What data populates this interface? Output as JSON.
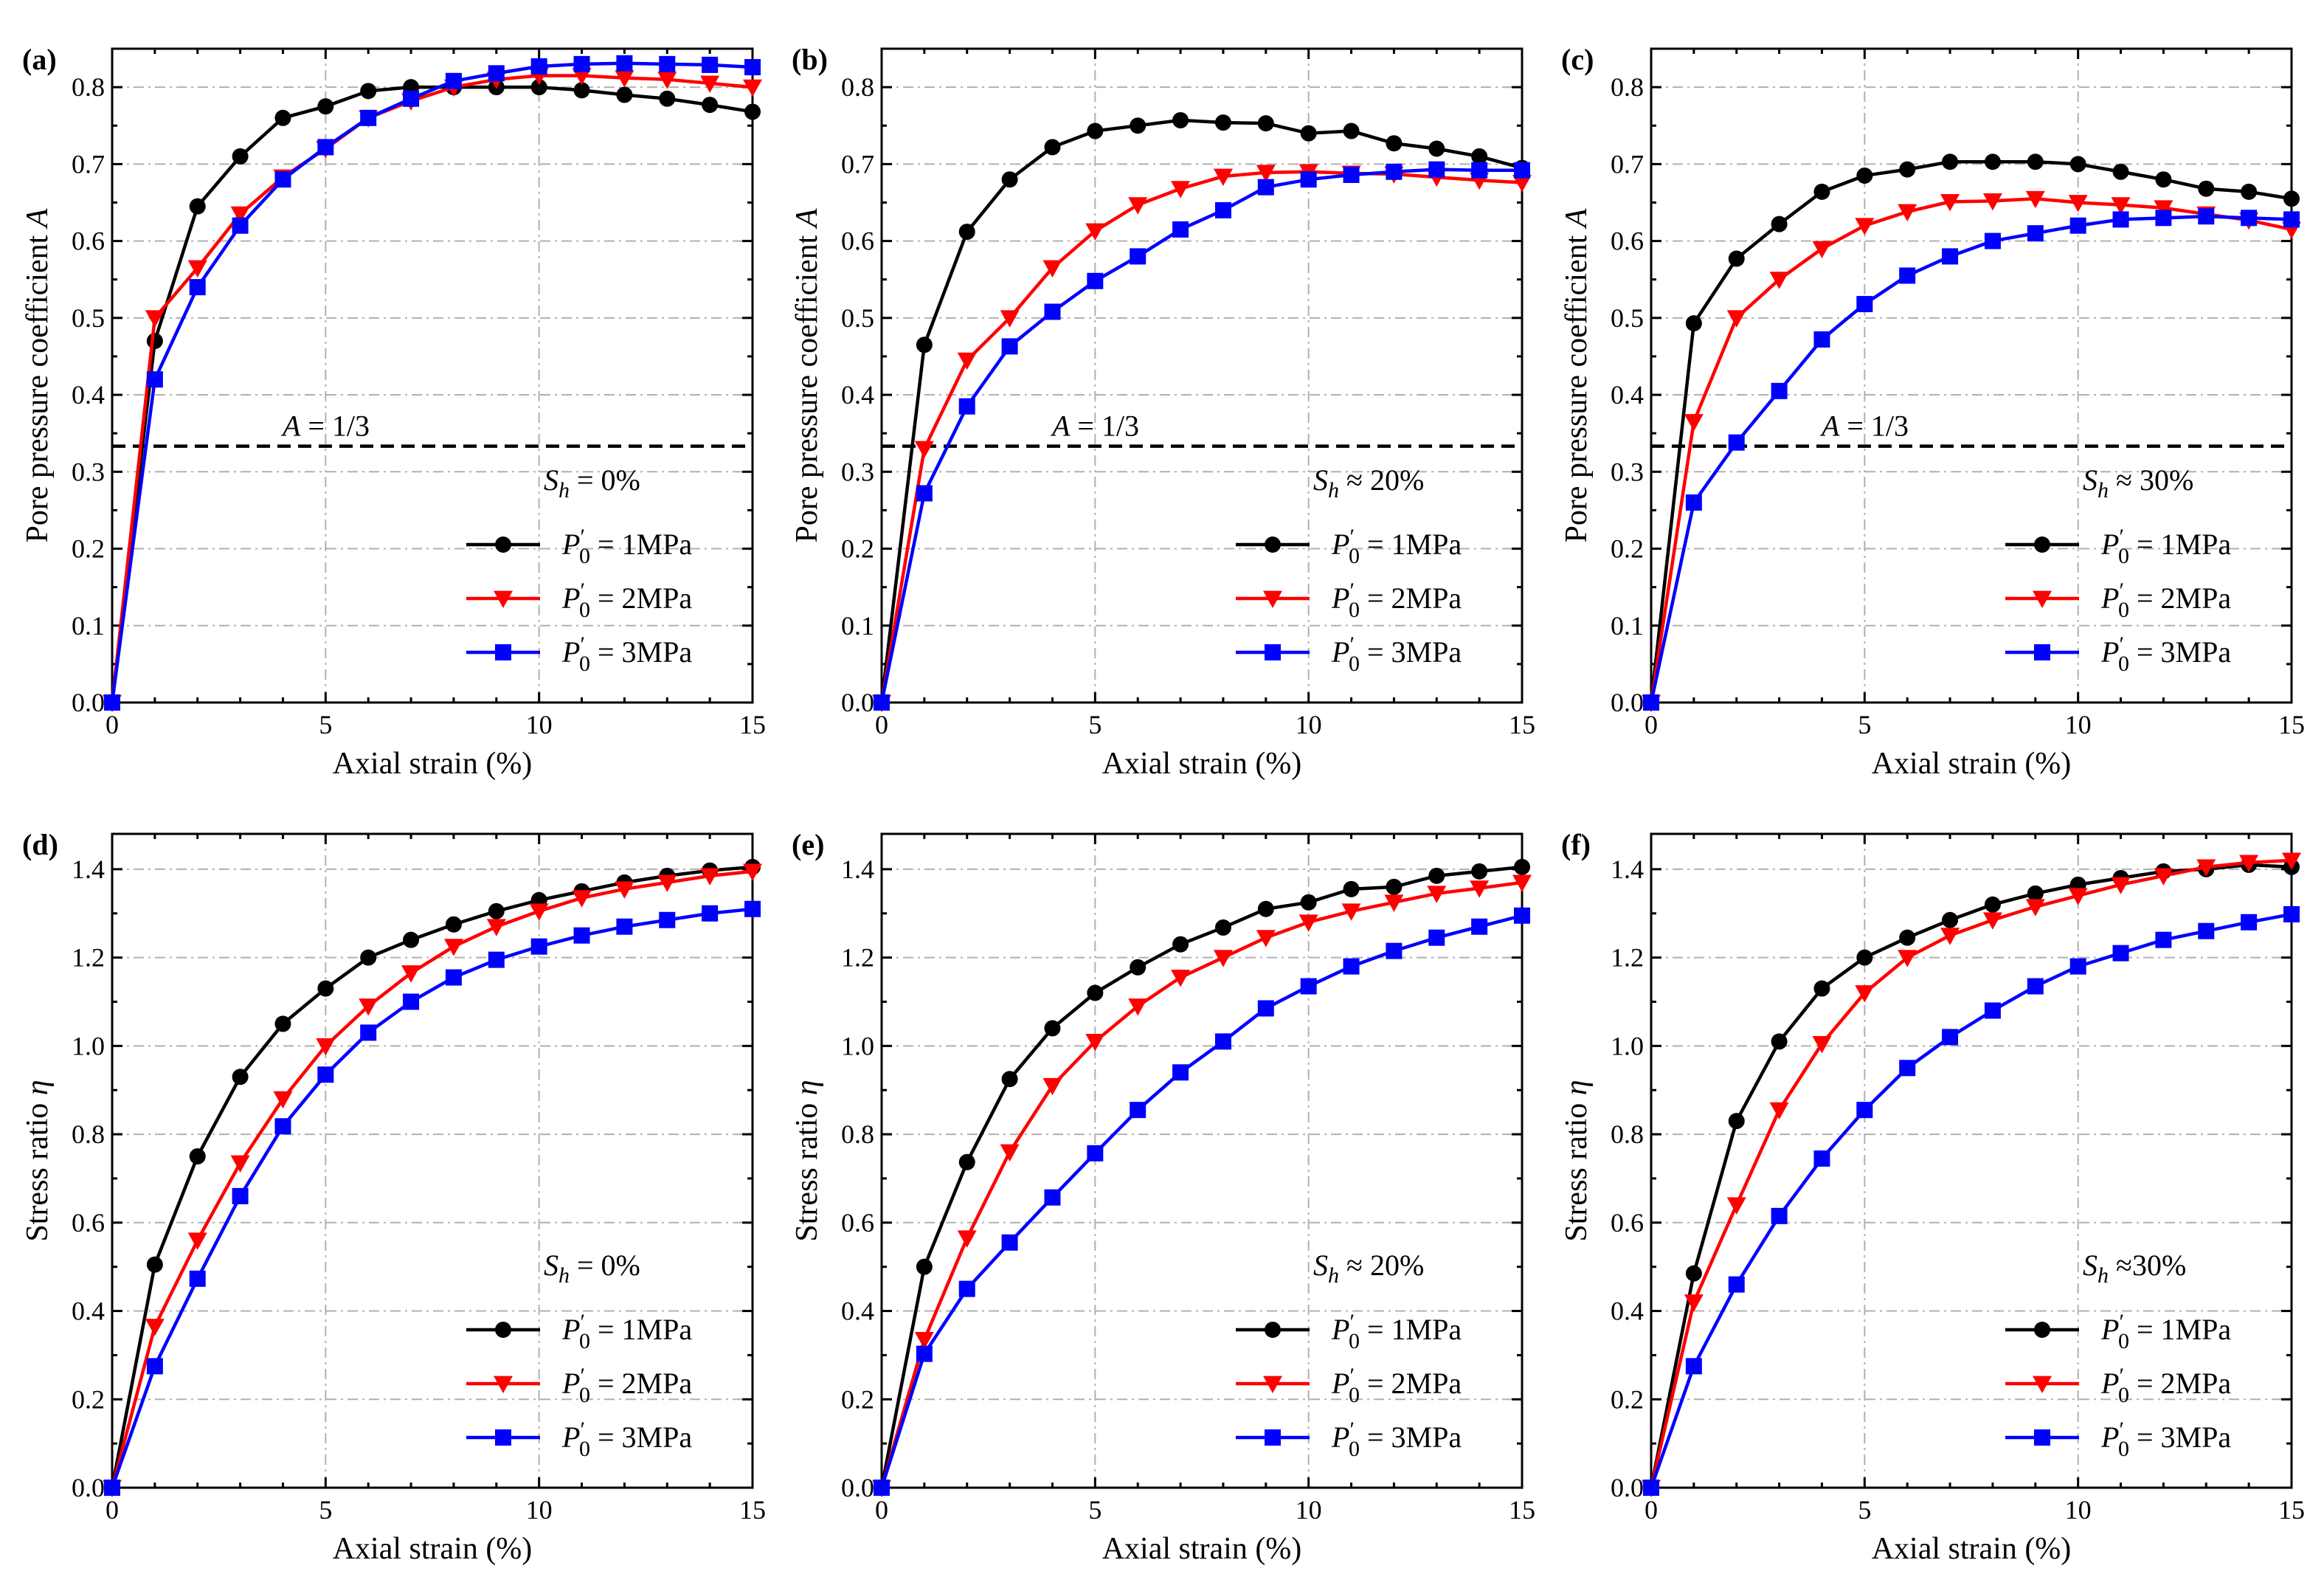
{
  "figure": {
    "series_names": [
      "P'0 = 1MPa",
      "P'0 = 2MPa",
      "P'0 = 3MPa"
    ],
    "legend_prefix": "P",
    "legend_superscript": "′",
    "legend_subscript": "0",
    "legend_values": [
      "= 1MPa",
      "= 2MPa",
      "= 3MPa"
    ],
    "series_colors": [
      "#000000",
      "#ff0000",
      "#0000ff"
    ],
    "series_markers": [
      "circle",
      "triangle-down",
      "square"
    ]
  },
  "chart_data": [
    {
      "panel": "(a)",
      "type": "line",
      "title": "",
      "xlabel": "Axial strain (%)",
      "ylabel_prefix": "Pore pressure coefficient ",
      "ylabel_symbol": "A",
      "xlim": [
        0,
        15
      ],
      "ylim": [
        0.0,
        0.85
      ],
      "xticks": [
        0,
        5,
        10,
        15
      ],
      "yticks": [
        0.0,
        0.1,
        0.2,
        0.3,
        0.4,
        0.5,
        0.6,
        0.7,
        0.8
      ],
      "ytick_labels": [
        "0.0",
        "0.1",
        "0.2",
        "0.3",
        "0.4",
        "0.5",
        "0.6",
        "0.7",
        "0.8"
      ],
      "grid": true,
      "condition_symbol": "S",
      "condition_sub": "h",
      "condition_rel": "= 0%",
      "refline": {
        "y": 0.3333,
        "symbol": "A",
        "text": "= 1/3"
      },
      "x": [
        0,
        1,
        2,
        3,
        4,
        5,
        6,
        7,
        8,
        9,
        10,
        11,
        12,
        13,
        14,
        15
      ],
      "series": [
        {
          "name": "P'0 = 1MPa",
          "values": [
            0,
            0.47,
            0.645,
            0.71,
            0.76,
            0.775,
            0.795,
            0.8,
            0.8,
            0.8,
            0.8,
            0.796,
            0.79,
            0.785,
            0.777,
            0.768
          ]
        },
        {
          "name": "P'0 = 2MPa",
          "values": [
            0,
            0.5,
            0.565,
            0.635,
            0.683,
            0.72,
            0.76,
            0.782,
            0.8,
            0.81,
            0.815,
            0.815,
            0.812,
            0.81,
            0.805,
            0.8
          ]
        },
        {
          "name": "P'0 = 3MPa",
          "values": [
            0,
            0.42,
            0.54,
            0.62,
            0.68,
            0.722,
            0.76,
            0.785,
            0.808,
            0.818,
            0.827,
            0.83,
            0.831,
            0.83,
            0.829,
            0.826
          ]
        }
      ]
    },
    {
      "panel": "(b)",
      "type": "line",
      "title": "",
      "xlabel": "Axial strain (%)",
      "ylabel_prefix": "Pore pressure coefficient ",
      "ylabel_symbol": "A",
      "xlim": [
        0,
        15
      ],
      "ylim": [
        0.0,
        0.85
      ],
      "xticks": [
        0,
        5,
        10,
        15
      ],
      "yticks": [
        0.0,
        0.1,
        0.2,
        0.3,
        0.4,
        0.5,
        0.6,
        0.7,
        0.8
      ],
      "ytick_labels": [
        "0.0",
        "0.1",
        "0.2",
        "0.3",
        "0.4",
        "0.5",
        "0.6",
        "0.7",
        "0.8"
      ],
      "grid": true,
      "condition_symbol": "S",
      "condition_sub": "h",
      "condition_rel": "≈ 20%",
      "refline": {
        "y": 0.3333,
        "symbol": "A",
        "text": "= 1/3"
      },
      "x": [
        0,
        1,
        2,
        3,
        4,
        5,
        6,
        7,
        8,
        9,
        10,
        11,
        12,
        13,
        14,
        15
      ],
      "series": [
        {
          "name": "P'0 = 1MPa",
          "values": [
            0,
            0.465,
            0.612,
            0.68,
            0.722,
            0.743,
            0.75,
            0.757,
            0.754,
            0.753,
            0.74,
            0.743,
            0.727,
            0.72,
            0.71,
            0.695
          ]
        },
        {
          "name": "P'0 = 2MPa",
          "values": [
            0,
            0.33,
            0.445,
            0.5,
            0.565,
            0.613,
            0.647,
            0.668,
            0.684,
            0.689,
            0.69,
            0.688,
            0.687,
            0.683,
            0.679,
            0.676
          ]
        },
        {
          "name": "P'0 = 3MPa",
          "values": [
            0,
            0.272,
            0.385,
            0.463,
            0.508,
            0.548,
            0.58,
            0.615,
            0.64,
            0.67,
            0.68,
            0.686,
            0.69,
            0.693,
            0.692,
            0.692
          ]
        }
      ]
    },
    {
      "panel": "(c)",
      "type": "line",
      "title": "",
      "xlabel": "Axial strain (%)",
      "ylabel_prefix": "Pore pressure coefficient ",
      "ylabel_symbol": "A",
      "xlim": [
        0,
        15
      ],
      "ylim": [
        0.0,
        0.85
      ],
      "xticks": [
        0,
        5,
        10,
        15
      ],
      "yticks": [
        0.0,
        0.1,
        0.2,
        0.3,
        0.4,
        0.5,
        0.6,
        0.7,
        0.8
      ],
      "ytick_labels": [
        "0.0",
        "0.1",
        "0.2",
        "0.3",
        "0.4",
        "0.5",
        "0.6",
        "0.7",
        "0.8"
      ],
      "grid": true,
      "condition_symbol": "S",
      "condition_sub": "h",
      "condition_rel": "≈ 30%",
      "refline": {
        "y": 0.3333,
        "symbol": "A",
        "text": "= 1/3"
      },
      "x": [
        0,
        1,
        2,
        3,
        4,
        5,
        6,
        7,
        8,
        9,
        10,
        11,
        12,
        13,
        14,
        15
      ],
      "series": [
        {
          "name": "P'0 = 1MPa",
          "values": [
            0,
            0.493,
            0.577,
            0.622,
            0.664,
            0.685,
            0.693,
            0.703,
            0.703,
            0.703,
            0.7,
            0.69,
            0.68,
            0.668,
            0.664,
            0.655
          ]
        },
        {
          "name": "P'0 = 2MPa",
          "values": [
            0,
            0.365,
            0.5,
            0.55,
            0.59,
            0.62,
            0.638,
            0.651,
            0.652,
            0.655,
            0.65,
            0.647,
            0.643,
            0.635,
            0.627,
            0.615
          ]
        },
        {
          "name": "P'0 = 3MPa",
          "values": [
            0,
            0.26,
            0.338,
            0.405,
            0.472,
            0.518,
            0.555,
            0.58,
            0.6,
            0.61,
            0.62,
            0.628,
            0.63,
            0.632,
            0.63,
            0.628
          ]
        }
      ]
    },
    {
      "panel": "(d)",
      "type": "line",
      "title": "",
      "xlabel": "Axial strain (%)",
      "ylabel_prefix": "Stress ratio ",
      "ylabel_symbol": "η",
      "xlim": [
        0,
        15
      ],
      "ylim": [
        0.0,
        1.48
      ],
      "xticks": [
        0,
        5,
        10,
        15
      ],
      "yticks": [
        0.0,
        0.2,
        0.4,
        0.6,
        0.8,
        1.0,
        1.2,
        1.4
      ],
      "ytick_labels": [
        "0.0",
        "0.2",
        "0.4",
        "0.6",
        "0.8",
        "1.0",
        "1.2",
        "1.4"
      ],
      "grid": true,
      "condition_symbol": "S",
      "condition_sub": "h",
      "condition_rel": "= 0%",
      "refline": null,
      "x": [
        0,
        1,
        2,
        3,
        4,
        5,
        6,
        7,
        8,
        9,
        10,
        11,
        12,
        13,
        14,
        15
      ],
      "series": [
        {
          "name": "P'0 = 1MPa",
          "values": [
            0,
            0.505,
            0.75,
            0.93,
            1.05,
            1.13,
            1.2,
            1.24,
            1.275,
            1.305,
            1.33,
            1.35,
            1.37,
            1.385,
            1.397,
            1.405
          ]
        },
        {
          "name": "P'0 = 2MPa",
          "values": [
            0,
            0.365,
            0.56,
            0.735,
            0.88,
            1.0,
            1.09,
            1.165,
            1.225,
            1.27,
            1.305,
            1.335,
            1.355,
            1.37,
            1.385,
            1.395
          ]
        },
        {
          "name": "P'0 = 3MPa",
          "values": [
            0,
            0.275,
            0.473,
            0.66,
            0.818,
            0.935,
            1.03,
            1.1,
            1.155,
            1.195,
            1.225,
            1.25,
            1.27,
            1.285,
            1.3,
            1.31
          ]
        }
      ]
    },
    {
      "panel": "(e)",
      "type": "line",
      "title": "",
      "xlabel": "Axial strain (%)",
      "ylabel_prefix": "Stress ratio ",
      "ylabel_symbol": "η",
      "xlim": [
        0,
        15
      ],
      "ylim": [
        0.0,
        1.48
      ],
      "xticks": [
        0,
        5,
        10,
        15
      ],
      "yticks": [
        0.0,
        0.2,
        0.4,
        0.6,
        0.8,
        1.0,
        1.2,
        1.4
      ],
      "ytick_labels": [
        "0.0",
        "0.2",
        "0.4",
        "0.6",
        "0.8",
        "1.0",
        "1.2",
        "1.4"
      ],
      "grid": true,
      "condition_symbol": "S",
      "condition_sub": "h",
      "condition_rel": "≈ 20%",
      "refline": null,
      "x": [
        0,
        1,
        2,
        3,
        4,
        5,
        6,
        7,
        8,
        9,
        10,
        11,
        12,
        13,
        14,
        15
      ],
      "series": [
        {
          "name": "P'0 = 1MPa",
          "values": [
            0,
            0.5,
            0.737,
            0.925,
            1.04,
            1.12,
            1.178,
            1.23,
            1.268,
            1.31,
            1.325,
            1.355,
            1.36,
            1.385,
            1.395,
            1.405
          ]
        },
        {
          "name": "P'0 = 2MPa",
          "values": [
            0,
            0.335,
            0.565,
            0.76,
            0.91,
            1.01,
            1.09,
            1.155,
            1.2,
            1.245,
            1.28,
            1.305,
            1.325,
            1.345,
            1.357,
            1.37
          ]
        },
        {
          "name": "P'0 = 3MPa",
          "values": [
            0,
            0.303,
            0.45,
            0.555,
            0.657,
            0.757,
            0.855,
            0.94,
            1.01,
            1.085,
            1.135,
            1.18,
            1.215,
            1.245,
            1.27,
            1.295
          ]
        }
      ]
    },
    {
      "panel": "(f)",
      "type": "line",
      "title": "",
      "xlabel": "Axial strain (%)",
      "ylabel_prefix": "Stress ratio ",
      "ylabel_symbol": "η",
      "xlim": [
        0,
        15
      ],
      "ylim": [
        0.0,
        1.48
      ],
      "xticks": [
        0,
        5,
        10,
        15
      ],
      "yticks": [
        0.0,
        0.2,
        0.4,
        0.6,
        0.8,
        1.0,
        1.2,
        1.4
      ],
      "ytick_labels": [
        "0.0",
        "0.2",
        "0.4",
        "0.6",
        "0.8",
        "1.0",
        "1.2",
        "1.4"
      ],
      "grid": true,
      "condition_symbol": "S",
      "condition_sub": "h",
      "condition_rel": "≈30%",
      "refline": null,
      "x": [
        0,
        1,
        2,
        3,
        4,
        5,
        6,
        7,
        8,
        9,
        10,
        11,
        12,
        13,
        14,
        15
      ],
      "series": [
        {
          "name": "P'0 = 1MPa",
          "values": [
            0,
            0.485,
            0.83,
            1.01,
            1.13,
            1.2,
            1.245,
            1.285,
            1.32,
            1.345,
            1.365,
            1.38,
            1.395,
            1.4,
            1.41,
            1.405
          ]
        },
        {
          "name": "P'0 = 2MPa",
          "values": [
            0,
            0.42,
            0.64,
            0.855,
            1.005,
            1.12,
            1.2,
            1.25,
            1.285,
            1.315,
            1.34,
            1.365,
            1.385,
            1.405,
            1.415,
            1.42
          ]
        },
        {
          "name": "P'0 = 3MPa",
          "values": [
            0,
            0.275,
            0.46,
            0.615,
            0.745,
            0.855,
            0.95,
            1.02,
            1.08,
            1.135,
            1.18,
            1.21,
            1.24,
            1.26,
            1.28,
            1.298
          ]
        }
      ]
    }
  ]
}
